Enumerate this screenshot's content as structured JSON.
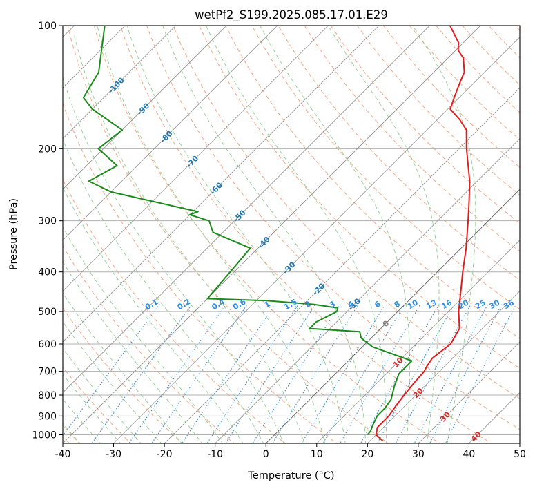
{
  "chart_data": {
    "type": "line",
    "title": "wetPf2_S199.2025.085.17.01.E29",
    "xlabel": "Temperature (°C)",
    "ylabel": "Pressure (hPa)",
    "xlim": [
      -40,
      50
    ],
    "ylim": [
      1050,
      100
    ],
    "y_scale": "log",
    "skew_degrees": 45,
    "grid": true,
    "x_ticks": [
      -40,
      -30,
      -20,
      -10,
      0,
      10,
      20,
      30,
      40,
      50
    ],
    "y_ticks": [
      100,
      200,
      300,
      400,
      500,
      600,
      700,
      800,
      900,
      1000
    ],
    "colors": {
      "temperature": "#e41a1c",
      "dewpoint": "#1a8a1a",
      "isotherm": "#8c8c8c",
      "isotherm_zero": "#555555",
      "dry_adiabat": "#f4a582",
      "moist_adiabat": "#8fcf8f",
      "mixing_ratio": "#3a8fd9",
      "tan_curves": "#d2b48c",
      "label_cold": "#1f77b4",
      "label_warm": "#d62728",
      "label_zero": "#7f7f7f",
      "label_mixing_ratio": "#2d8fe6"
    },
    "series": [
      {
        "key": "temperature",
        "x": [
          22.5,
          20.0,
          18.8,
          18.8,
          18.2,
          17.7,
          17.3,
          17.0,
          16.5,
          16.0,
          16.8,
          15.5,
          12.0,
          8.0,
          5.0,
          1.0,
          -4.0,
          -7.5,
          -11.5,
          -18.5,
          -22.2,
          -25.5,
          -29.5,
          -31.0,
          -32.5,
          -34.0,
          -37.0,
          -39.5,
          -41.0,
          -46.0
        ],
        "y": [
          1035,
          1000,
          960,
          900,
          850,
          800,
          750,
          700,
          680,
          650,
          600,
          550,
          500,
          440,
          400,
          350,
          300,
          270,
          240,
          200,
          180,
          170,
          160,
          150,
          140,
          130,
          120,
          115,
          110,
          100
        ]
      },
      {
        "key": "dewpoint",
        "x": [
          18.3,
          18.2,
          17.5,
          16.5,
          16.5,
          16.0,
          14.0,
          12.5,
          12.5,
          2.0,
          -2.0,
          -3.5,
          -14.0,
          -14.0,
          -12.0,
          -12.5,
          -18.0,
          -28.0,
          -40.0,
          -41.5,
          -52.0,
          -55.0,
          -60.0,
          -59.0,
          -80.0,
          -86.5,
          -84.0,
          -91.0,
          -90.0,
          -100.0,
          -104.0,
          -106.0,
          -114.0
        ],
        "y": [
          1000,
          980,
          950,
          900,
          860,
          820,
          760,
          710,
          660,
          610,
          580,
          560,
          550,
          530,
          500,
          490,
          480,
          470,
          465,
          350,
          320,
          300,
          290,
          285,
          255,
          240,
          220,
          200,
          180,
          160,
          150,
          130,
          100
        ]
      }
    ],
    "isotherm_labels": [
      "-100",
      "-90",
      "-80",
      "-70",
      "-60",
      "-50",
      "-40",
      "-30",
      "-20",
      "-10",
      "0",
      "10",
      "20",
      "30",
      "40"
    ],
    "mixing_ratio_labels": [
      "0.1",
      "0.2",
      "0.4",
      "0.6",
      "1",
      "1.5",
      "2",
      "3",
      "4",
      "6",
      "8",
      "10",
      "13",
      "16",
      "20",
      "25",
      "30",
      "36"
    ]
  }
}
